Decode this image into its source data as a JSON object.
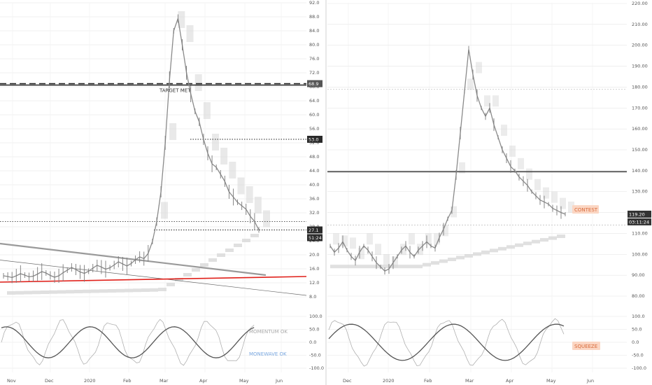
{
  "colors": {
    "background": "#ffffff",
    "grid": "#e6e6e6",
    "price": "#8a8a8a",
    "band": "#cfcfcf",
    "trendline": "#9a9a9a",
    "support_red": "#e0201a",
    "target_line": "#222222",
    "badge_dark": "#2a2a2a",
    "label_orange": "#f08c5a",
    "label_blue": "#7aa8e0"
  },
  "chart_data": [
    {
      "type": "line",
      "panel": "left-price",
      "y_ticks": [
        "92.0",
        "88.0",
        "84.0",
        "80.0",
        "76.0",
        "72.0",
        "68.0",
        "64.0",
        "60.0",
        "56.0",
        "52.0",
        "48.0",
        "44.0",
        "40.0",
        "36.0",
        "32.0",
        "28.0",
        "24.0",
        "20.0",
        "16.0",
        "12.0",
        "8.0"
      ],
      "ylim": [
        6,
        92
      ],
      "x_ticks": [
        "Nov",
        "Dec",
        "2020",
        "Feb",
        "Mar",
        "Apr",
        "May",
        "Jun"
      ],
      "series": [
        {
          "values": [
            14,
            13.8,
            13.5,
            14,
            14.6,
            14.2,
            13.7,
            13.9,
            14.5,
            15.2,
            14.8,
            14.1,
            13.6,
            14,
            14.9,
            15.6,
            16.4,
            15.8,
            15.1,
            14.7,
            15.3,
            16.2,
            17,
            16.5,
            15.9,
            16.3,
            17.1,
            18,
            17.4,
            16.8,
            17.5,
            18.6,
            19.4,
            18.9,
            20.4,
            23.8,
            29.5,
            38,
            52,
            70,
            84,
            87.5,
            80,
            72,
            66,
            61,
            58,
            53,
            49,
            46,
            45,
            43,
            41,
            38,
            36.5,
            35,
            34,
            33,
            31,
            29.5,
            27.1
          ]
        }
      ],
      "horizontal_levels": [
        {
          "value": 68.9,
          "label": "68.9",
          "style": "dashed"
        },
        {
          "value": 68.5,
          "label": "TARGET MET",
          "style": "solid"
        },
        {
          "value": 53.0,
          "label": "53.0",
          "style": "dotted"
        },
        {
          "value": 27.1,
          "label": "27.1",
          "style": "dotted"
        }
      ],
      "countdown": "51:24"
    },
    {
      "type": "line",
      "panel": "left-oscillator",
      "y_ticks": [
        "100.0",
        "50.0",
        "0.0",
        "-50.0",
        "-100.0"
      ],
      "ylim": [
        -110,
        110
      ],
      "labels": [
        "MOMENTUM OK",
        "MONEWAVE OK"
      ]
    },
    {
      "type": "line",
      "panel": "right-price",
      "y_ticks": [
        "220.00",
        "210.00",
        "200.00",
        "190.00",
        "180.00",
        "170.00",
        "160.00",
        "150.00",
        "140.00",
        "130.00",
        "120.00",
        "110.00",
        "100.00",
        "90.00",
        "80.00"
      ],
      "ylim": [
        75,
        220
      ],
      "x_ticks": [
        "Dec",
        "2020",
        "Feb",
        "Mar",
        "Apr",
        "May",
        "Jun"
      ],
      "series": [
        {
          "values": [
            104,
            101,
            103,
            106,
            102,
            99,
            97,
            101,
            104,
            102,
            99,
            96,
            94,
            92,
            93,
            96,
            99,
            102,
            104,
            101,
            99,
            102,
            104,
            106,
            104,
            103,
            108,
            112,
            117,
            121,
            138,
            158,
            178,
            198,
            186,
            176,
            170,
            166,
            170,
            162,
            156,
            150,
            146,
            142,
            140,
            137,
            135,
            133,
            130,
            128,
            126,
            125,
            124,
            122,
            121,
            120,
            119.2
          ]
        }
      ],
      "horizontal_levels": [
        {
          "value": 139.5,
          "style": "solid"
        },
        {
          "value": 179,
          "style": "dashed"
        },
        {
          "value": 114,
          "style": "dashed"
        }
      ],
      "price_label": "119.20",
      "countdown": "03:11:24",
      "annotation": "CONTEST"
    },
    {
      "type": "line",
      "panel": "right-oscillator",
      "y_ticks": [
        "100.0",
        "50.0",
        "0.0",
        "-50.0",
        "-100.0"
      ],
      "ylim": [
        -110,
        110
      ],
      "labels": [
        "SQUEEZE"
      ]
    }
  ]
}
